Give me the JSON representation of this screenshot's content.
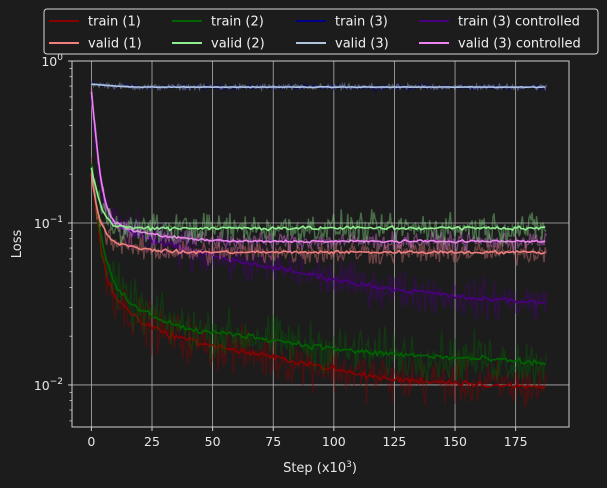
{
  "chart_data": {
    "type": "line",
    "title": "",
    "xlabel": "Step (x10",
    "xlabel_sup": "3",
    "xlabel_suffix": ")",
    "ylabel": "Loss",
    "yscale": "log",
    "xlim": [
      -8,
      197
    ],
    "ylim": [
      0.0055,
      1.0
    ],
    "x_ticks": [
      0,
      25,
      50,
      75,
      100,
      125,
      150,
      175
    ],
    "y_tick_labels": [
      {
        "value": 1.0,
        "base": "10",
        "exp": "0"
      },
      {
        "value": 0.1,
        "base": "10",
        "exp": "−1"
      },
      {
        "value": 0.01,
        "base": "10",
        "exp": "−2"
      }
    ],
    "grid": true,
    "legend_position": "top",
    "series": [
      {
        "name": "train (1)",
        "color": "#8b0000",
        "x": [
          0,
          2,
          4,
          6,
          8,
          10,
          15,
          20,
          30,
          40,
          50,
          60,
          75,
          90,
          100,
          110,
          125,
          140,
          150,
          160,
          175,
          188
        ],
        "values": [
          0.23,
          0.12,
          0.07,
          0.048,
          0.04,
          0.035,
          0.029,
          0.025,
          0.021,
          0.019,
          0.0175,
          0.0163,
          0.0148,
          0.0135,
          0.0125,
          0.0116,
          0.0108,
          0.0105,
          0.0104,
          0.0101,
          0.0098,
          0.0097
        ]
      },
      {
        "name": "valid (1)",
        "color": "#f08080",
        "x": [
          0,
          2,
          4,
          6,
          8,
          10,
          15,
          20,
          30,
          40,
          50,
          60,
          75,
          90,
          100,
          110,
          125,
          140,
          150,
          160,
          175,
          188
        ],
        "values": [
          0.2,
          0.13,
          0.1,
          0.088,
          0.08,
          0.075,
          0.072,
          0.07,
          0.067,
          0.066,
          0.066,
          0.066,
          0.066,
          0.066,
          0.066,
          0.066,
          0.066,
          0.066,
          0.066,
          0.066,
          0.066,
          0.066
        ]
      },
      {
        "name": "train (2)",
        "color": "#006400",
        "x": [
          0,
          2,
          4,
          6,
          8,
          10,
          15,
          20,
          30,
          40,
          50,
          60,
          75,
          90,
          100,
          110,
          125,
          140,
          150,
          160,
          175,
          188
        ],
        "values": [
          0.24,
          0.13,
          0.085,
          0.06,
          0.048,
          0.04,
          0.033,
          0.029,
          0.025,
          0.022,
          0.021,
          0.0205,
          0.019,
          0.0175,
          0.0168,
          0.016,
          0.0155,
          0.015,
          0.0147,
          0.0145,
          0.014,
          0.0135
        ]
      },
      {
        "name": "valid (2)",
        "color": "#90ee90",
        "x": [
          0,
          2,
          4,
          6,
          8,
          10,
          15,
          20,
          30,
          40,
          50,
          60,
          75,
          90,
          100,
          110,
          125,
          140,
          150,
          160,
          175,
          188
        ],
        "values": [
          0.22,
          0.16,
          0.125,
          0.11,
          0.1,
          0.096,
          0.094,
          0.093,
          0.093,
          0.093,
          0.093,
          0.093,
          0.093,
          0.093,
          0.093,
          0.093,
          0.093,
          0.093,
          0.093,
          0.093,
          0.093,
          0.093
        ]
      },
      {
        "name": "train (3)",
        "color": "#00008b",
        "x": [
          0,
          10,
          20,
          30,
          40,
          50,
          60,
          75,
          90,
          100,
          110,
          125,
          140,
          150,
          160,
          175,
          188
        ],
        "values": [
          0.72,
          0.7,
          0.69,
          0.69,
          0.69,
          0.69,
          0.69,
          0.69,
          0.69,
          0.69,
          0.69,
          0.69,
          0.69,
          0.69,
          0.69,
          0.69,
          0.69
        ]
      },
      {
        "name": "valid (3)",
        "color": "#b0c4de",
        "x": [
          0,
          10,
          20,
          30,
          40,
          50,
          60,
          75,
          90,
          100,
          110,
          125,
          140,
          150,
          160,
          175,
          188
        ],
        "values": [
          0.72,
          0.7,
          0.69,
          0.69,
          0.69,
          0.69,
          0.69,
          0.69,
          0.69,
          0.69,
          0.69,
          0.69,
          0.69,
          0.69,
          0.69,
          0.69,
          0.69
        ]
      },
      {
        "name": "train (3) controlled",
        "color": "#4b0082",
        "x": [
          0,
          2,
          4,
          6,
          8,
          10,
          15,
          20,
          30,
          40,
          50,
          60,
          75,
          90,
          100,
          110,
          125,
          140,
          150,
          160,
          175,
          188
        ],
        "values": [
          0.6,
          0.3,
          0.17,
          0.13,
          0.11,
          0.1,
          0.09,
          0.083,
          0.075,
          0.068,
          0.063,
          0.058,
          0.053,
          0.048,
          0.045,
          0.042,
          0.039,
          0.037,
          0.035,
          0.034,
          0.033,
          0.032
        ]
      },
      {
        "name": "valid (3) controlled",
        "color": "#ee82ee",
        "x": [
          0,
          2,
          4,
          6,
          8,
          10,
          15,
          20,
          30,
          40,
          50,
          60,
          75,
          90,
          100,
          110,
          125,
          140,
          150,
          160,
          175,
          188
        ],
        "values": [
          0.65,
          0.32,
          0.18,
          0.13,
          0.11,
          0.1,
          0.092,
          0.088,
          0.083,
          0.08,
          0.078,
          0.077,
          0.077,
          0.077,
          0.077,
          0.077,
          0.077,
          0.077,
          0.077,
          0.077,
          0.077,
          0.077
        ]
      }
    ]
  }
}
